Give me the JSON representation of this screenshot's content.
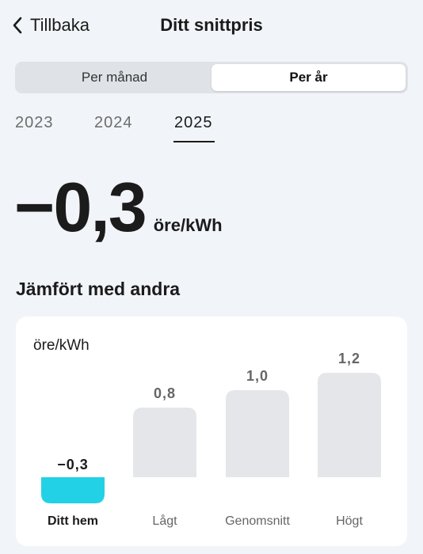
{
  "header": {
    "back_label": "Tillbaka",
    "title": "Ditt snittpris"
  },
  "period_toggle": {
    "options": [
      {
        "label": "Per månad",
        "active": false
      },
      {
        "label": "Per år",
        "active": true
      }
    ]
  },
  "years": [
    {
      "label": "2023",
      "active": false
    },
    {
      "label": "2024",
      "active": false
    },
    {
      "label": "2025",
      "active": true
    }
  ],
  "price": {
    "value": "−0,3",
    "unit": "öre/kWh"
  },
  "comparison": {
    "title": "Jämfört med andra"
  },
  "colors": {
    "highlight_bar": "#22d1e6",
    "other_bar": "#e4e6ea"
  },
  "chart_data": {
    "type": "bar",
    "ylabel": "öre/kWh",
    "categories": [
      "Ditt hem",
      "Lågt",
      "Genomsnitt",
      "Högt"
    ],
    "values": [
      -0.3,
      0.8,
      1.0,
      1.2
    ],
    "value_labels": [
      "−0,3",
      "0,8",
      "1,0",
      "1,2"
    ],
    "highlight_index": 0,
    "grid": false
  }
}
